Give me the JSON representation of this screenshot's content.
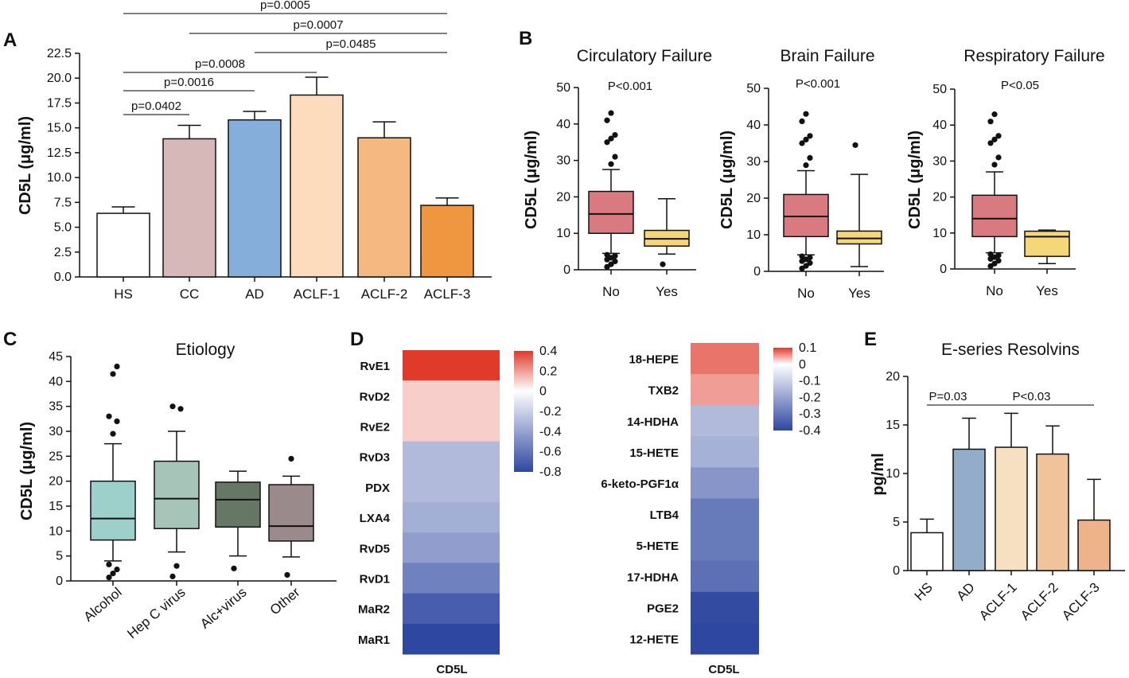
{
  "chart_data": [
    {
      "id": "A",
      "panel_label": "A",
      "type": "bar",
      "title": "",
      "ylabel": "CD5L (μg/ml)",
      "ylim": [
        0,
        22.5
      ],
      "yticks": [
        "0.0",
        "2.5",
        "5.0",
        "7.5",
        "10.0",
        "12.5",
        "15.0",
        "17.5",
        "20.0",
        "22.5"
      ],
      "categories": [
        "HS",
        "CC",
        "AD",
        "ACLF-1",
        "ACLF-2",
        "ACLF-3"
      ],
      "values": [
        6.4,
        13.9,
        15.8,
        18.3,
        14.0,
        7.2
      ],
      "errors": [
        0.65,
        1.35,
        0.85,
        1.8,
        1.6,
        0.75
      ],
      "colors": [
        "#ffffff",
        "#d6b8b8",
        "#85aedb",
        "#fcdcbc",
        "#f6b881",
        "#ef9640"
      ],
      "significance": [
        {
          "from": 0,
          "to": 1,
          "label": "p=0.0402"
        },
        {
          "from": 0,
          "to": 2,
          "label": "p=0.0016"
        },
        {
          "from": 0,
          "to": 3,
          "label": "p=0.0008"
        },
        {
          "from": 2,
          "to": 5,
          "label": "p=0.0485"
        },
        {
          "from": 1,
          "to": 5,
          "label": "p=0.0007"
        },
        {
          "from": 0,
          "to": 5,
          "label": "p=0.0005"
        }
      ]
    },
    {
      "id": "B1",
      "panel_label": "B",
      "type": "box",
      "title": "Circulatory Failure",
      "ylabel": "CD5L (μg/ml)",
      "ylim": [
        0,
        50
      ],
      "yticks": [
        "0",
        "10",
        "20",
        "30",
        "40",
        "50"
      ],
      "annotation": "P<0.001",
      "categories": [
        "No",
        "Yes"
      ],
      "colors": [
        "#d97a80",
        "#f5d77a"
      ],
      "boxes": [
        {
          "whisker_low": 4.5,
          "q1": 10,
          "median": 15.3,
          "q3": 21.5,
          "whisker_high": 27.5,
          "outliers": [
            0.8,
            1.5,
            2.3,
            2.8,
            3.3,
            3.8,
            4.1,
            29,
            31,
            35,
            36,
            37,
            41,
            43
          ]
        },
        {
          "whisker_low": 4.3,
          "q1": 6.5,
          "median": 8.5,
          "q3": 10.8,
          "whisker_high": 19.5,
          "outliers": [
            1.5
          ]
        }
      ]
    },
    {
      "id": "B2",
      "panel_label": "",
      "type": "box",
      "title": "Brain Failure",
      "ylabel": "CD5L (μg/ml)",
      "ylim": [
        0,
        50
      ],
      "yticks": [
        "0",
        "10",
        "20",
        "30",
        "40",
        "50"
      ],
      "annotation": "P<0.001",
      "categories": [
        "No",
        "Yes"
      ],
      "colors": [
        "#d97a80",
        "#f5d77a"
      ],
      "boxes": [
        {
          "whisker_low": 4.5,
          "q1": 9.5,
          "median": 15,
          "q3": 21,
          "whisker_high": 27.5,
          "outliers": [
            0.8,
            1.5,
            2.3,
            2.8,
            3.3,
            3.8,
            4.1,
            29,
            31,
            35,
            36,
            37,
            41,
            43
          ]
        },
        {
          "whisker_low": 1.3,
          "q1": 7.5,
          "median": 9,
          "q3": 11,
          "whisker_high": 26.5,
          "outliers": [
            34.5
          ]
        }
      ]
    },
    {
      "id": "B3",
      "panel_label": "",
      "type": "box",
      "title": "Respiratory Failure",
      "ylabel": "CD5L (μg/ml)",
      "ylim": [
        0,
        50
      ],
      "yticks": [
        "0",
        "10",
        "20",
        "30",
        "40",
        "50"
      ],
      "annotation": "P<0.05",
      "categories": [
        "No",
        "Yes"
      ],
      "colors": [
        "#d97a80",
        "#f5d77a"
      ],
      "boxes": [
        {
          "whisker_low": 4.5,
          "q1": 9,
          "median": 14,
          "q3": 20.5,
          "whisker_high": 27,
          "outliers": [
            0.8,
            1.5,
            2.3,
            2.8,
            3.3,
            3.8,
            4.1,
            29,
            31,
            35,
            36,
            37,
            41,
            43
          ]
        },
        {
          "whisker_low": 1.5,
          "q1": 3.5,
          "median": 9,
          "q3": 10.5,
          "whisker_high": 10.8,
          "outliers": []
        }
      ]
    },
    {
      "id": "C",
      "panel_label": "C",
      "type": "box",
      "title": "Etiology",
      "ylabel": "CD5L (μg/ml)",
      "ylim": [
        0,
        45
      ],
      "yticks": [
        "0",
        "5",
        "10",
        "15",
        "20",
        "25",
        "30",
        "35",
        "40",
        "45"
      ],
      "annotation": "",
      "categories": [
        "Alcohol",
        "Hep C virus",
        "Alc+virus",
        "Other"
      ],
      "colors": [
        "#9ed0cb",
        "#a7c4b8",
        "#667865",
        "#9b8a8b"
      ],
      "boxes": [
        {
          "whisker_low": 4,
          "q1": 8.2,
          "median": 12.5,
          "q3": 20,
          "whisker_high": 27.5,
          "outliers": [
            0.7,
            1.5,
            2.3,
            3.3,
            29.5,
            32,
            33,
            41.5,
            43
          ]
        },
        {
          "whisker_low": 5.8,
          "q1": 10.5,
          "median": 16.5,
          "q3": 24,
          "whisker_high": 30,
          "outliers": [
            0.9,
            3,
            34.5,
            35
          ]
        },
        {
          "whisker_low": 5,
          "q1": 10.8,
          "median": 16.3,
          "q3": 19.8,
          "whisker_high": 22,
          "outliers": [
            2.5
          ]
        },
        {
          "whisker_low": 4.8,
          "q1": 8,
          "median": 11,
          "q3": 19.3,
          "whisker_high": 21,
          "outliers": [
            1.2,
            24.5
          ]
        }
      ]
    },
    {
      "id": "D1",
      "panel_label": "D",
      "type": "heatmap",
      "xlabel": "CD5L",
      "rows": [
        "RvE1",
        "RvD2",
        "RvE2",
        "RvD3",
        "PDX",
        "LXA4",
        "RvD5",
        "RvD1",
        "MaR2",
        "MaR1"
      ],
      "values": [
        0.4,
        0.1,
        0.1,
        -0.3,
        -0.3,
        -0.35,
        -0.42,
        -0.55,
        -0.7,
        -0.8
      ],
      "colorbar": {
        "min": -0.8,
        "max": 0.4,
        "ticks": [
          "0.4",
          "0.2",
          "0",
          "-0.2",
          "-0.4",
          "-0.6",
          "-0.8"
        ]
      }
    },
    {
      "id": "D2",
      "panel_label": "",
      "type": "heatmap",
      "xlabel": "CD5L",
      "rows": [
        "18-HEPE",
        "TXB2",
        "14-HDHA",
        "15-HETE",
        "6-keto-PGF1α",
        "LTB4",
        "5-HETE",
        "17-HDHA",
        "PGE2",
        "12-HETE"
      ],
      "values": [
        0.07,
        0.05,
        -0.15,
        -0.17,
        -0.23,
        -0.29,
        -0.29,
        -0.31,
        -0.39,
        -0.4
      ],
      "colorbar": {
        "min": -0.4,
        "max": 0.1,
        "ticks": [
          "0.1",
          "0",
          "-0.1",
          "-0.2",
          "-0.3",
          "-0.4"
        ]
      }
    },
    {
      "id": "E",
      "panel_label": "E",
      "type": "bar",
      "title": "E-series Resolvins",
      "ylabel": "pg/ml",
      "ylim": [
        0,
        20
      ],
      "yticks": [
        "0",
        "5",
        "10",
        "15",
        "20"
      ],
      "categories": [
        "HS",
        "AD",
        "ACLF-1",
        "ACLF-2",
        "ACLF-3"
      ],
      "values": [
        3.9,
        12.5,
        12.7,
        12.0,
        5.2
      ],
      "errors": [
        1.4,
        3.2,
        3.5,
        2.9,
        4.2
      ],
      "colors": [
        "#ffffff",
        "#92acca",
        "#f7dfc2",
        "#f1c39a",
        "#eeb38a"
      ],
      "significance": [
        {
          "from": 0,
          "to": 1,
          "label": "P=0.03"
        },
        {
          "from": 1,
          "to": 4,
          "label": "P<0.03"
        }
      ]
    }
  ]
}
